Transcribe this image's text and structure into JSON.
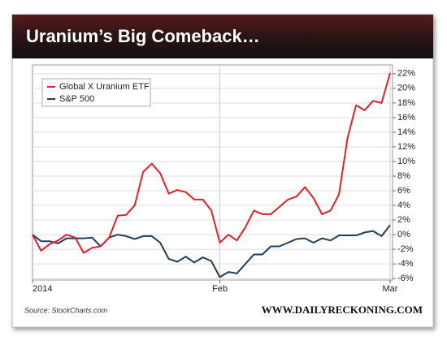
{
  "chart_data": {
    "type": "line",
    "title": "Uranium’s Big Comeback…",
    "source": "Source: StockCharts.com",
    "credit": "WWW.DAILYRECKONING.COM",
    "categories": [
      "2014",
      null,
      null,
      null,
      null,
      null,
      null,
      null,
      null,
      null,
      null,
      null,
      null,
      null,
      null,
      null,
      null,
      null,
      null,
      null,
      null,
      null,
      "Feb",
      null,
      null,
      null,
      null,
      null,
      null,
      null,
      null,
      null,
      null,
      null,
      null,
      null,
      null,
      null,
      null,
      null,
      null,
      null,
      "Mar"
    ],
    "series": [
      {
        "name": "Global X Uranium ETF",
        "color": "#e0202a",
        "values": [
          0,
          -2.2,
          -1.3,
          -0.8,
          0,
          -0.4,
          -2.5,
          -1.8,
          -1.6,
          -0.4,
          2.6,
          2.7,
          4.0,
          8.6,
          9.7,
          8.4,
          5.6,
          6.1,
          5.8,
          4.8,
          4.8,
          3.3,
          -1.1,
          0,
          -0.8,
          1.0,
          3.3,
          2.8,
          2.8,
          3.8,
          4.8,
          5.2,
          6.5,
          5.0,
          2.8,
          3.3,
          5.5,
          13.2,
          17.7,
          17.0,
          18.3,
          18.0,
          22.1
        ]
      },
      {
        "name": "S&P 500",
        "color": "#1f3f5a",
        "values": [
          0,
          -0.9,
          -0.9,
          -1.2,
          -0.5,
          -0.5,
          -0.5,
          -0.4,
          -1.6,
          -0.4,
          0,
          -0.2,
          -0.6,
          -0.2,
          -0.2,
          -1.1,
          -3.3,
          -3.7,
          -3.0,
          -3.8,
          -3.1,
          -3.6,
          -5.8,
          -5.1,
          -5.3,
          -4.0,
          -2.7,
          -2.7,
          -1.6,
          -1.6,
          -1.1,
          -0.6,
          -0.5,
          -1.1,
          -0.5,
          -0.8,
          -0.1,
          -0.1,
          -0.1,
          0.3,
          0.5,
          -0.2,
          1.3
        ]
      }
    ],
    "ylim": [
      -6.2,
      23.2
    ],
    "yticks": [
      {
        "value": -6,
        "label": "-6%"
      },
      {
        "value": -4,
        "label": "-4%"
      },
      {
        "value": -2,
        "label": "-2%"
      },
      {
        "value": 0,
        "label": "0%"
      },
      {
        "value": 2,
        "label": "2%"
      },
      {
        "value": 4,
        "label": "4%"
      },
      {
        "value": 6,
        "label": "6%"
      },
      {
        "value": 8,
        "label": "8%"
      },
      {
        "value": 10,
        "label": "10%"
      },
      {
        "value": 12,
        "label": "12%"
      },
      {
        "value": 14,
        "label": "14%"
      },
      {
        "value": 16,
        "label": "16%"
      },
      {
        "value": 18,
        "label": "18%"
      },
      {
        "value": 20,
        "label": "20%"
      },
      {
        "value": 22,
        "label": "22%"
      }
    ],
    "grid": true,
    "legend": "upper left"
  }
}
